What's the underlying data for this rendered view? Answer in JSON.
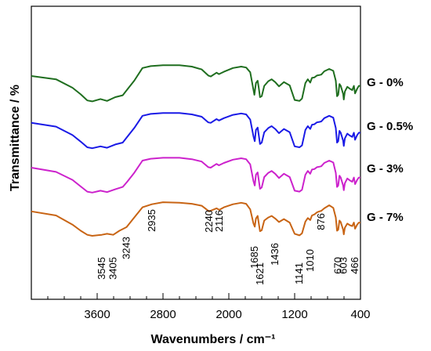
{
  "chart_data": {
    "type": "line",
    "xlabel": "Wavenumbers / cm⁻¹",
    "ylabel": "Transmittance / %",
    "xlim": [
      4400,
      400
    ],
    "x_reversed": true,
    "x_ticks": [
      3600,
      2800,
      2000,
      1200,
      400
    ],
    "y_ticks": [],
    "grid": false,
    "legend_placement": "right (labels next to curves)",
    "series": [
      {
        "name": "G - 0%",
        "color": "#1f6e1f",
        "points": [
          [
            4400,
            -0.5
          ],
          [
            4100,
            -1.2
          ],
          [
            3900,
            -3.0
          ],
          [
            3800,
            -4.4
          ],
          [
            3720,
            -5.7
          ],
          [
            3660,
            -5.9
          ],
          [
            3560,
            -5.4
          ],
          [
            3480,
            -5.8
          ],
          [
            3380,
            -5.0
          ],
          [
            3290,
            -4.6
          ],
          [
            3240,
            -3.5
          ],
          [
            3150,
            -1.5
          ],
          [
            3050,
            1.2
          ],
          [
            2950,
            1.6
          ],
          [
            2800,
            1.8
          ],
          [
            2600,
            1.8
          ],
          [
            2450,
            1.5
          ],
          [
            2330,
            0.9
          ],
          [
            2250,
            -0.4
          ],
          [
            2220,
            -0.6
          ],
          [
            2150,
            0.2
          ],
          [
            2120,
            -0.1
          ],
          [
            2060,
            0.4
          ],
          [
            1950,
            1.2
          ],
          [
            1850,
            1.5
          ],
          [
            1790,
            1.3
          ],
          [
            1740,
            0.3
          ],
          [
            1700,
            -3.5
          ],
          [
            1690,
            -4.5
          ],
          [
            1670,
            -2.0
          ],
          [
            1650,
            -1.5
          ],
          [
            1636,
            -3.0
          ],
          [
            1621,
            -5.0
          ],
          [
            1600,
            -4.8
          ],
          [
            1570,
            -2.6
          ],
          [
            1520,
            -1.6
          ],
          [
            1480,
            -1.2
          ],
          [
            1436,
            -1.8
          ],
          [
            1390,
            -2.7
          ],
          [
            1330,
            -1.8
          ],
          [
            1260,
            -2.5
          ],
          [
            1200,
            -5.6
          ],
          [
            1141,
            -5.8
          ],
          [
            1110,
            -5.3
          ],
          [
            1070,
            -2.0
          ],
          [
            1040,
            -1.2
          ],
          [
            1010,
            -1.9
          ],
          [
            990,
            -0.9
          ],
          [
            960,
            -0.8
          ],
          [
            930,
            -0.4
          ],
          [
            900,
            -0.3
          ],
          [
            876,
            -0.2
          ],
          [
            840,
            0.5
          ],
          [
            780,
            1.0
          ],
          [
            730,
            0.6
          ],
          [
            700,
            -1.5
          ],
          [
            685,
            -4.8
          ],
          [
            670,
            -4.5
          ],
          [
            655,
            -2.2
          ],
          [
            640,
            -2.6
          ],
          [
            610,
            -4.3
          ],
          [
            603,
            -5.5
          ],
          [
            590,
            -3.8
          ],
          [
            560,
            -2.8
          ],
          [
            530,
            -3.2
          ],
          [
            500,
            -3.5
          ],
          [
            480,
            -2.6
          ],
          [
            466,
            -4.2
          ],
          [
            440,
            -3.2
          ],
          [
            420,
            -2.6
          ],
          [
            400,
            -2.6
          ]
        ]
      },
      {
        "name": "G - 0.5%",
        "color": "#1a1ae6",
        "points": [
          [
            4400,
            -0.8
          ],
          [
            4100,
            -1.6
          ],
          [
            3900,
            -3.4
          ],
          [
            3800,
            -4.8
          ],
          [
            3720,
            -6.0
          ],
          [
            3660,
            -6.2
          ],
          [
            3560,
            -5.8
          ],
          [
            3480,
            -6.1
          ],
          [
            3380,
            -5.4
          ],
          [
            3290,
            -5.0
          ],
          [
            3240,
            -3.9
          ],
          [
            3150,
            -1.9
          ],
          [
            3050,
            0.7
          ],
          [
            2950,
            1.1
          ],
          [
            2800,
            1.3
          ],
          [
            2600,
            1.3
          ],
          [
            2450,
            1.0
          ],
          [
            2330,
            0.5
          ],
          [
            2250,
            -0.7
          ],
          [
            2220,
            -0.8
          ],
          [
            2150,
            0.0
          ],
          [
            2120,
            -0.3
          ],
          [
            2060,
            0.2
          ],
          [
            1950,
            0.9
          ],
          [
            1850,
            1.2
          ],
          [
            1790,
            1.0
          ],
          [
            1740,
            -0.1
          ],
          [
            1700,
            -3.7
          ],
          [
            1685,
            -4.7
          ],
          [
            1670,
            -2.3
          ],
          [
            1650,
            -1.8
          ],
          [
            1636,
            -3.4
          ],
          [
            1621,
            -5.3
          ],
          [
            1600,
            -5.0
          ],
          [
            1570,
            -2.8
          ],
          [
            1520,
            -1.9
          ],
          [
            1480,
            -1.5
          ],
          [
            1436,
            -2.1
          ],
          [
            1390,
            -3.0
          ],
          [
            1330,
            -2.1
          ],
          [
            1260,
            -2.8
          ],
          [
            1200,
            -5.8
          ],
          [
            1141,
            -6.0
          ],
          [
            1110,
            -5.6
          ],
          [
            1070,
            -2.3
          ],
          [
            1040,
            -1.5
          ],
          [
            1010,
            -2.1
          ],
          [
            990,
            -1.2
          ],
          [
            960,
            -1.1
          ],
          [
            930,
            -0.7
          ],
          [
            900,
            -0.6
          ],
          [
            876,
            -0.5
          ],
          [
            840,
            0.2
          ],
          [
            780,
            0.7
          ],
          [
            730,
            0.3
          ],
          [
            700,
            -1.9
          ],
          [
            685,
            -5.0
          ],
          [
            670,
            -4.7
          ],
          [
            655,
            -2.5
          ],
          [
            640,
            -2.9
          ],
          [
            610,
            -4.6
          ],
          [
            603,
            -5.7
          ],
          [
            590,
            -4.1
          ],
          [
            560,
            -3.1
          ],
          [
            530,
            -3.5
          ],
          [
            500,
            -3.8
          ],
          [
            480,
            -2.9
          ],
          [
            466,
            -4.4
          ],
          [
            440,
            -3.4
          ],
          [
            420,
            -2.9
          ],
          [
            400,
            -2.9
          ]
        ]
      },
      {
        "name": "G - 3%",
        "color": "#cc22cc",
        "points": [
          [
            4400,
            -1.0
          ],
          [
            4100,
            -1.9
          ],
          [
            3900,
            -3.6
          ],
          [
            3800,
            -5.0
          ],
          [
            3720,
            -6.1
          ],
          [
            3660,
            -6.3
          ],
          [
            3560,
            -5.9
          ],
          [
            3480,
            -6.2
          ],
          [
            3380,
            -5.6
          ],
          [
            3290,
            -5.1
          ],
          [
            3240,
            -4.1
          ],
          [
            3150,
            -2.1
          ],
          [
            3050,
            0.5
          ],
          [
            2950,
            0.9
          ],
          [
            2800,
            1.1
          ],
          [
            2600,
            1.1
          ],
          [
            2450,
            0.8
          ],
          [
            2330,
            0.3
          ],
          [
            2250,
            -0.9
          ],
          [
            2220,
            -1.0
          ],
          [
            2150,
            -0.2
          ],
          [
            2120,
            -0.5
          ],
          [
            2060,
            0.0
          ],
          [
            1950,
            0.7
          ],
          [
            1850,
            1.0
          ],
          [
            1790,
            0.8
          ],
          [
            1740,
            -0.3
          ],
          [
            1700,
            -3.9
          ],
          [
            1685,
            -4.8
          ],
          [
            1670,
            -2.5
          ],
          [
            1650,
            -2.0
          ],
          [
            1636,
            -3.6
          ],
          [
            1621,
            -5.5
          ],
          [
            1600,
            -5.2
          ],
          [
            1570,
            -3.0
          ],
          [
            1520,
            -2.1
          ],
          [
            1480,
            -1.7
          ],
          [
            1436,
            -2.3
          ],
          [
            1390,
            -3.2
          ],
          [
            1330,
            -2.3
          ],
          [
            1260,
            -3.0
          ],
          [
            1200,
            -5.9
          ],
          [
            1141,
            -6.1
          ],
          [
            1110,
            -5.7
          ],
          [
            1070,
            -2.5
          ],
          [
            1040,
            -1.7
          ],
          [
            1010,
            -2.3
          ],
          [
            990,
            -1.4
          ],
          [
            960,
            -1.3
          ],
          [
            930,
            -0.9
          ],
          [
            900,
            -0.8
          ],
          [
            876,
            -0.7
          ],
          [
            840,
            0.0
          ],
          [
            780,
            0.5
          ],
          [
            730,
            0.1
          ],
          [
            700,
            -2.1
          ],
          [
            685,
            -5.1
          ],
          [
            670,
            -4.8
          ],
          [
            655,
            -2.7
          ],
          [
            640,
            -3.1
          ],
          [
            610,
            -4.8
          ],
          [
            603,
            -5.8
          ],
          [
            590,
            -4.3
          ],
          [
            560,
            -3.3
          ],
          [
            530,
            -3.7
          ],
          [
            500,
            -4.0
          ],
          [
            480,
            -3.1
          ],
          [
            466,
            -4.5
          ],
          [
            440,
            -3.6
          ],
          [
            420,
            -3.1
          ],
          [
            400,
            -3.1
          ]
        ]
      },
      {
        "name": "G - 7%",
        "color": "#c86414",
        "points": [
          [
            4400,
            -1.2
          ],
          [
            4100,
            -2.0
          ],
          [
            3900,
            -3.8
          ],
          [
            3800,
            -5.0
          ],
          [
            3720,
            -5.8
          ],
          [
            3660,
            -6.0
          ],
          [
            3545,
            -5.8
          ],
          [
            3480,
            -5.6
          ],
          [
            3405,
            -5.8
          ],
          [
            3330,
            -5.0
          ],
          [
            3243,
            -4.3
          ],
          [
            3150,
            -2.4
          ],
          [
            3050,
            -0.4
          ],
          [
            2935,
            0.2
          ],
          [
            2800,
            0.6
          ],
          [
            2600,
            0.5
          ],
          [
            2450,
            0.3
          ],
          [
            2330,
            -0.1
          ],
          [
            2240,
            -1.2
          ],
          [
            2210,
            -1.0
          ],
          [
            2150,
            -0.6
          ],
          [
            2116,
            -0.9
          ],
          [
            2060,
            -0.4
          ],
          [
            1950,
            0.2
          ],
          [
            1850,
            0.5
          ],
          [
            1790,
            0.3
          ],
          [
            1740,
            -0.8
          ],
          [
            1700,
            -3.6
          ],
          [
            1685,
            -4.2
          ],
          [
            1670,
            -2.6
          ],
          [
            1650,
            -2.1
          ],
          [
            1636,
            -3.5
          ],
          [
            1621,
            -5.1
          ],
          [
            1600,
            -4.9
          ],
          [
            1570,
            -3.0
          ],
          [
            1520,
            -2.4
          ],
          [
            1480,
            -2.1
          ],
          [
            1436,
            -2.6
          ],
          [
            1390,
            -3.3
          ],
          [
            1330,
            -2.7
          ],
          [
            1260,
            -3.4
          ],
          [
            1200,
            -5.6
          ],
          [
            1141,
            -5.9
          ],
          [
            1110,
            -5.5
          ],
          [
            1070,
            -3.2
          ],
          [
            1040,
            -2.5
          ],
          [
            1010,
            -2.9
          ],
          [
            990,
            -2.0
          ],
          [
            960,
            -1.8
          ],
          [
            930,
            -1.4
          ],
          [
            900,
            -1.2
          ],
          [
            876,
            -1.1
          ],
          [
            840,
            -0.6
          ],
          [
            780,
            0.0
          ],
          [
            730,
            -0.5
          ],
          [
            700,
            -2.4
          ],
          [
            685,
            -5.0
          ],
          [
            670,
            -4.8
          ],
          [
            655,
            -3.0
          ],
          [
            640,
            -3.3
          ],
          [
            610,
            -4.8
          ],
          [
            603,
            -5.7
          ],
          [
            590,
            -4.4
          ],
          [
            560,
            -3.6
          ],
          [
            530,
            -3.9
          ],
          [
            500,
            -4.1
          ],
          [
            480,
            -3.4
          ],
          [
            466,
            -4.6
          ],
          [
            440,
            -3.8
          ],
          [
            420,
            -3.4
          ],
          [
            400,
            -3.4
          ]
        ]
      }
    ],
    "annotations": [
      {
        "label": "3545",
        "x": 3545
      },
      {
        "label": "3405",
        "x": 3405
      },
      {
        "label": "3243",
        "x": 3243
      },
      {
        "label": "2935",
        "x": 2935
      },
      {
        "label": "2240",
        "x": 2240
      },
      {
        "label": "2116",
        "x": 2116
      },
      {
        "label": "1685",
        "x": 1685
      },
      {
        "label": "1621",
        "x": 1621
      },
      {
        "label": "1436",
        "x": 1436
      },
      {
        "label": "1141",
        "x": 1141
      },
      {
        "label": "1010",
        "x": 1010
      },
      {
        "label": "876",
        "x": 876
      },
      {
        "label": "670",
        "x": 670
      },
      {
        "label": "603",
        "x": 603
      },
      {
        "label": "466",
        "x": 466
      }
    ]
  }
}
